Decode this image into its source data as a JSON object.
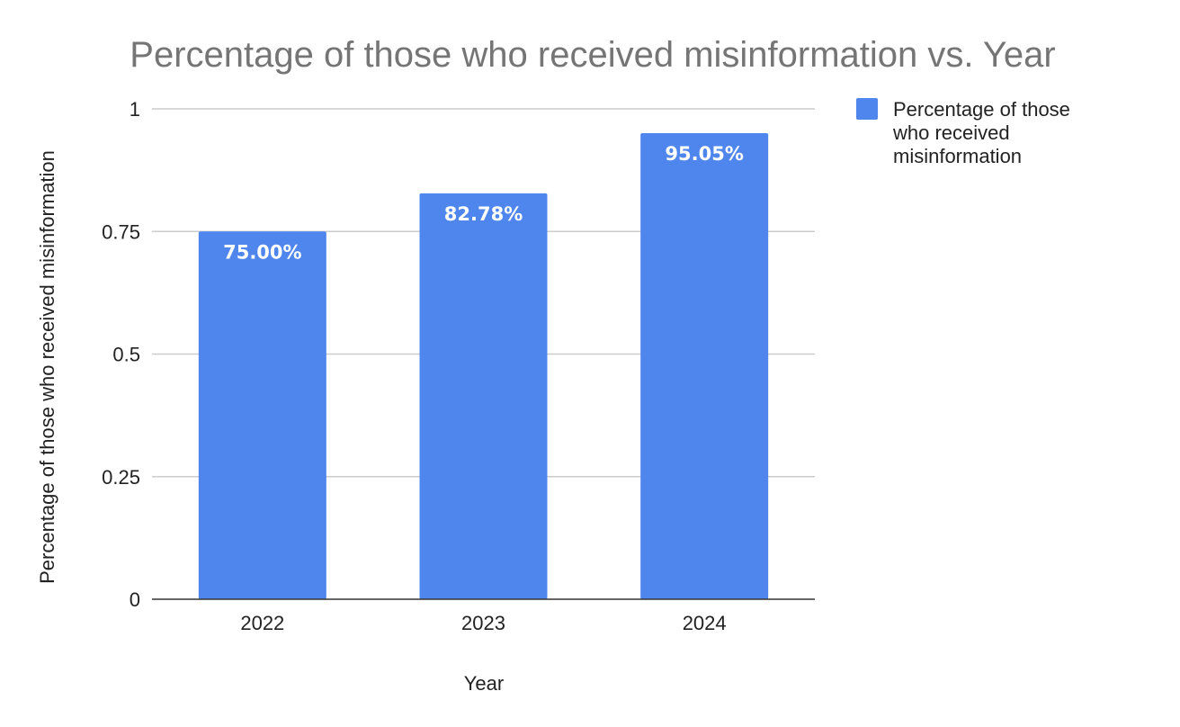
{
  "chart_data": {
    "type": "bar",
    "title": "Percentage of those who received misinformation vs. Year",
    "xlabel": "Year",
    "ylabel": "Percentage of those who received misinformation",
    "categories": [
      "2022",
      "2023",
      "2024"
    ],
    "series": [
      {
        "name": "Percentage of those who received misinformation",
        "values": [
          0.75,
          0.8278,
          0.9505
        ],
        "data_labels": [
          "75.00%",
          "82.78%",
          "95.05%"
        ],
        "color": "#4f86ee"
      }
    ],
    "ylim": [
      0,
      1
    ],
    "yticks": [
      0,
      0.25,
      0.5,
      0.75,
      1
    ],
    "ytick_labels": [
      "0",
      "0.25",
      "0.5",
      "0.75",
      "1"
    ],
    "grid": true,
    "legend": {
      "position": "right",
      "lines": [
        "Percentage of those",
        "who received",
        "misinformation"
      ]
    }
  }
}
